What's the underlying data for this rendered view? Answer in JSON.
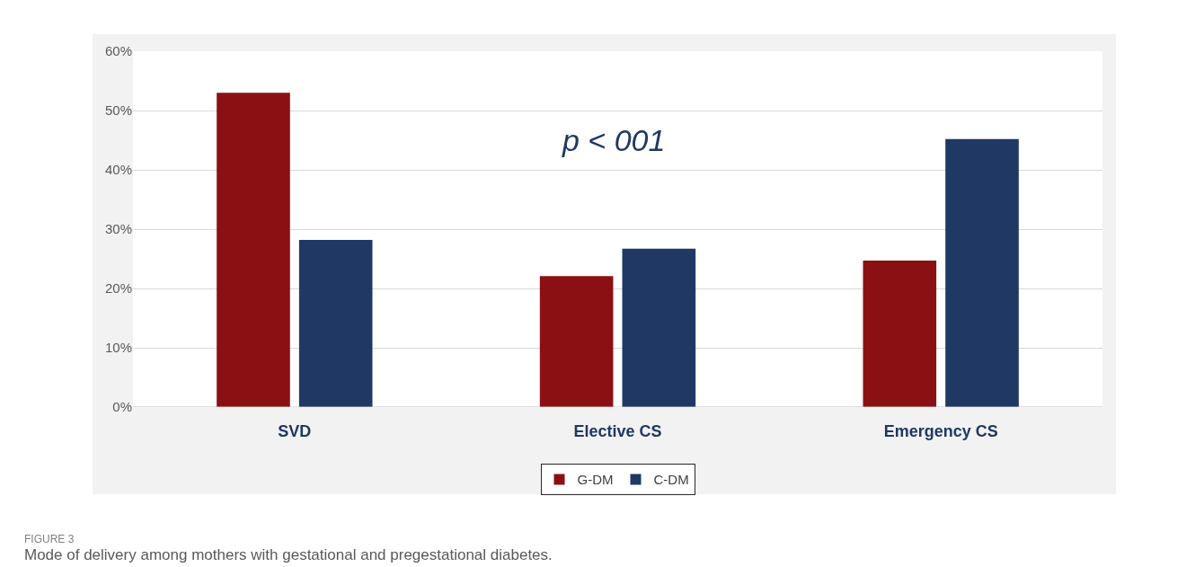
{
  "chart_data": {
    "type": "bar",
    "categories": [
      "SVD",
      "Elective CS",
      "Emergency CS"
    ],
    "series": [
      {
        "name": "G-DM",
        "color": "#8b1014",
        "values": [
          53,
          22.1,
          24.7
        ]
      },
      {
        "name": "C-DM",
        "color": "#1f3864",
        "values": [
          28.2,
          26.7,
          45.2
        ]
      }
    ],
    "ylim": [
      0,
      60
    ],
    "yticks": [
      {
        "value": 0,
        "label": "0%"
      },
      {
        "value": 10,
        "label": "10%"
      },
      {
        "value": 20,
        "label": "20%"
      },
      {
        "value": 30,
        "label": "30%"
      },
      {
        "value": 40,
        "label": "40%"
      },
      {
        "value": 50,
        "label": "50%"
      },
      {
        "value": 60,
        "label": "60%"
      }
    ],
    "grid": "y",
    "legend": "bottom",
    "annotations": [
      "p < 001",
      "FIGURE 3",
      "Mode of delivery among mothers with gestational and pregestational diabetes."
    ]
  }
}
